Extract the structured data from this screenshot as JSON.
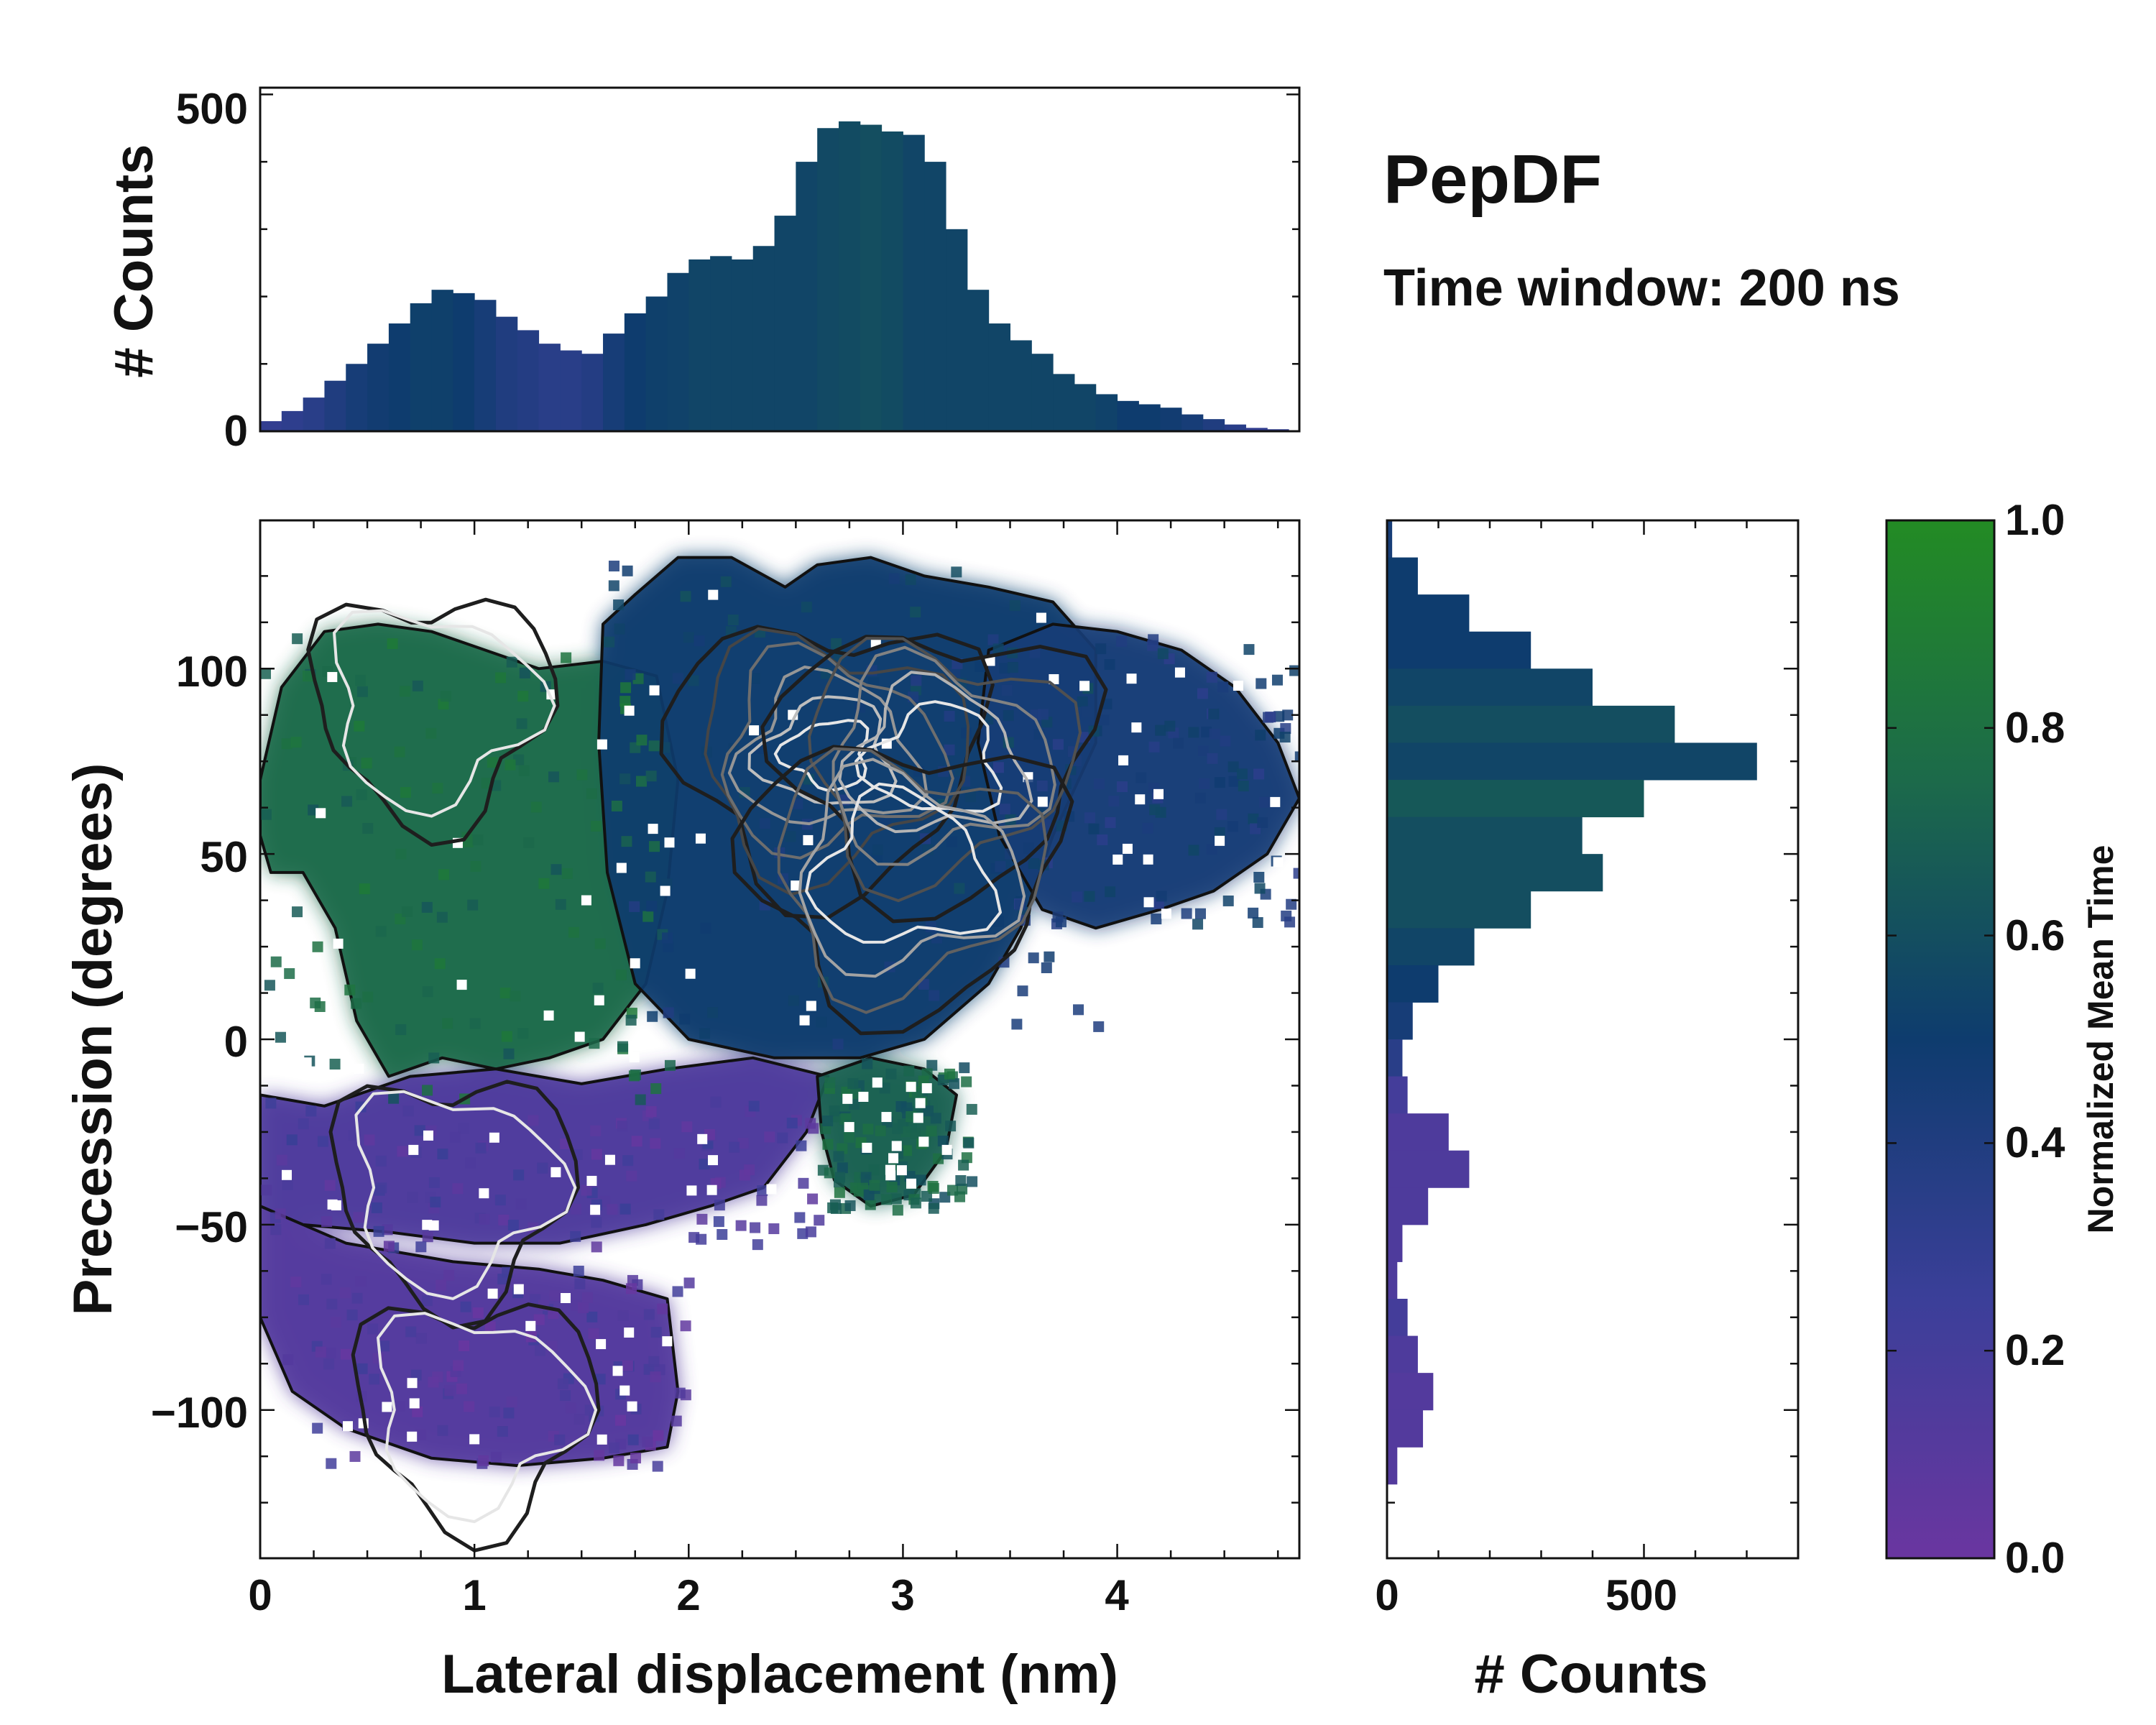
{
  "chart_data": [
    {
      "id": "top-hist",
      "type": "bar",
      "role": "marginal histogram of lateral displacement",
      "ylabel": "# Counts",
      "xlim": [
        0,
        4.85
      ],
      "ylim": [
        0,
        510
      ],
      "yticks": [
        0,
        500
      ],
      "ytick_labels": [
        "0",
        "500"
      ],
      "x": [
        0.05,
        0.15,
        0.25,
        0.35,
        0.45,
        0.55,
        0.65,
        0.75,
        0.85,
        0.95,
        1.05,
        1.15,
        1.25,
        1.35,
        1.45,
        1.55,
        1.65,
        1.75,
        1.85,
        1.95,
        2.05,
        2.15,
        2.25,
        2.35,
        2.45,
        2.55,
        2.65,
        2.75,
        2.85,
        2.95,
        3.05,
        3.15,
        3.25,
        3.35,
        3.45,
        3.55,
        3.65,
        3.75,
        3.85,
        3.95,
        4.05,
        4.15,
        4.25,
        4.35,
        4.45,
        4.55,
        4.65,
        4.75
      ],
      "values": [
        15,
        30,
        50,
        75,
        100,
        130,
        160,
        190,
        210,
        205,
        195,
        170,
        150,
        130,
        120,
        115,
        145,
        175,
        200,
        235,
        255,
        260,
        255,
        275,
        320,
        400,
        450,
        460,
        455,
        445,
        440,
        400,
        300,
        210,
        160,
        135,
        115,
        85,
        70,
        55,
        45,
        40,
        35,
        25,
        18,
        10,
        5,
        3
      ],
      "value_mean_time": [
        0.3,
        0.32,
        0.35,
        0.4,
        0.45,
        0.48,
        0.5,
        0.52,
        0.52,
        0.5,
        0.45,
        0.4,
        0.38,
        0.35,
        0.35,
        0.38,
        0.45,
        0.5,
        0.52,
        0.53,
        0.55,
        0.55,
        0.55,
        0.55,
        0.55,
        0.55,
        0.57,
        0.58,
        0.6,
        0.58,
        0.55,
        0.55,
        0.55,
        0.55,
        0.55,
        0.55,
        0.55,
        0.55,
        0.55,
        0.53,
        0.5,
        0.5,
        0.48,
        0.45,
        0.4,
        0.35,
        0.3,
        0.3
      ]
    },
    {
      "id": "main-2d",
      "type": "heatmap",
      "role": "2D histogram colored by normalized mean time with count contours",
      "title": "PepDF",
      "subtitle": "Time window: 200 ns",
      "xlabel": "Lateral displacement (nm)",
      "ylabel": "Precession (degrees)",
      "xlim": [
        0,
        4.85
      ],
      "ylim": [
        -140,
        140
      ],
      "xticks": [
        0,
        1,
        2,
        3,
        4
      ],
      "xtick_labels": [
        "0",
        "1",
        "2",
        "3",
        "4"
      ],
      "yticks": [
        100,
        50,
        0,
        -50,
        -100
      ],
      "ytick_labels": [
        "100",
        "50",
        "0",
        "−50",
        "−100"
      ],
      "regions": [
        {
          "name": "upper-left green lobe",
          "x_range": [
            0.0,
            1.9
          ],
          "y_range": [
            -15,
            110
          ],
          "mean_time": 0.75
        },
        {
          "name": "central dense blue region",
          "x_range": [
            1.6,
            3.9
          ],
          "y_range": [
            0,
            130
          ],
          "mean_time": 0.5
        },
        {
          "name": "right blue-teal wing",
          "x_range": [
            3.4,
            4.85
          ],
          "y_range": [
            30,
            110
          ],
          "mean_time": 0.45
        },
        {
          "name": "lower purple band",
          "x_range": [
            0.0,
            2.6
          ],
          "y_range": [
            -55,
            -15
          ],
          "mean_time": 0.15
        },
        {
          "name": "bottom-left purple lobe",
          "x_range": [
            0.1,
            2.0
          ],
          "y_range": [
            -115,
            -60
          ],
          "mean_time": 0.12
        },
        {
          "name": "small green island",
          "x_range": [
            2.6,
            3.3
          ],
          "y_range": [
            -45,
            -5
          ],
          "mean_time": 0.7
        }
      ],
      "density_peaks": [
        {
          "x": 2.65,
          "y": 77,
          "relative_density": 1.0
        },
        {
          "x": 3.15,
          "y": 75,
          "relative_density": 0.9
        },
        {
          "x": 3.0,
          "y": 45,
          "relative_density": 0.6
        },
        {
          "x": 0.8,
          "y": 90,
          "relative_density": 0.35
        },
        {
          "x": 0.9,
          "y": -40,
          "relative_density": 0.3
        },
        {
          "x": 1.0,
          "y": -100,
          "relative_density": 0.25
        }
      ]
    },
    {
      "id": "right-hist",
      "type": "bar",
      "orientation": "horizontal",
      "role": "marginal histogram of precession",
      "xlabel": "# Counts",
      "xlim": [
        0,
        800
      ],
      "xticks": [
        0,
        500
      ],
      "xtick_labels": [
        "0",
        "500"
      ],
      "y": [
        135,
        125,
        115,
        105,
        95,
        85,
        75,
        65,
        55,
        45,
        35,
        25,
        15,
        5,
        -5,
        -15,
        -25,
        -35,
        -45,
        -55,
        -65,
        -75,
        -85,
        -95,
        -105,
        -115
      ],
      "values": [
        10,
        60,
        160,
        280,
        400,
        560,
        720,
        500,
        380,
        420,
        280,
        170,
        100,
        50,
        30,
        40,
        120,
        160,
        80,
        30,
        20,
        40,
        60,
        90,
        70,
        20
      ],
      "value_mean_time": [
        0.45,
        0.5,
        0.5,
        0.5,
        0.55,
        0.6,
        0.55,
        0.65,
        0.6,
        0.6,
        0.6,
        0.55,
        0.5,
        0.45,
        0.35,
        0.2,
        0.15,
        0.15,
        0.15,
        0.15,
        0.15,
        0.2,
        0.15,
        0.12,
        0.12,
        0.12
      ]
    },
    {
      "id": "colorbar",
      "type": "colorbar",
      "label": "Normalized Mean Time",
      "range": [
        0.0,
        1.0
      ],
      "ticks": [
        0.0,
        0.2,
        0.4,
        0.6,
        0.8,
        1.0
      ],
      "tick_labels": [
        "0.0",
        "0.2",
        "0.4",
        "0.6",
        "0.8",
        "1.0"
      ],
      "colormap_stops": [
        {
          "value": 0.0,
          "color": "#6a36a0"
        },
        {
          "value": 0.25,
          "color": "#3b3f99"
        },
        {
          "value": 0.5,
          "color": "#0e3c6e"
        },
        {
          "value": 0.75,
          "color": "#1c6a4a"
        },
        {
          "value": 1.0,
          "color": "#238b24"
        }
      ]
    }
  ]
}
